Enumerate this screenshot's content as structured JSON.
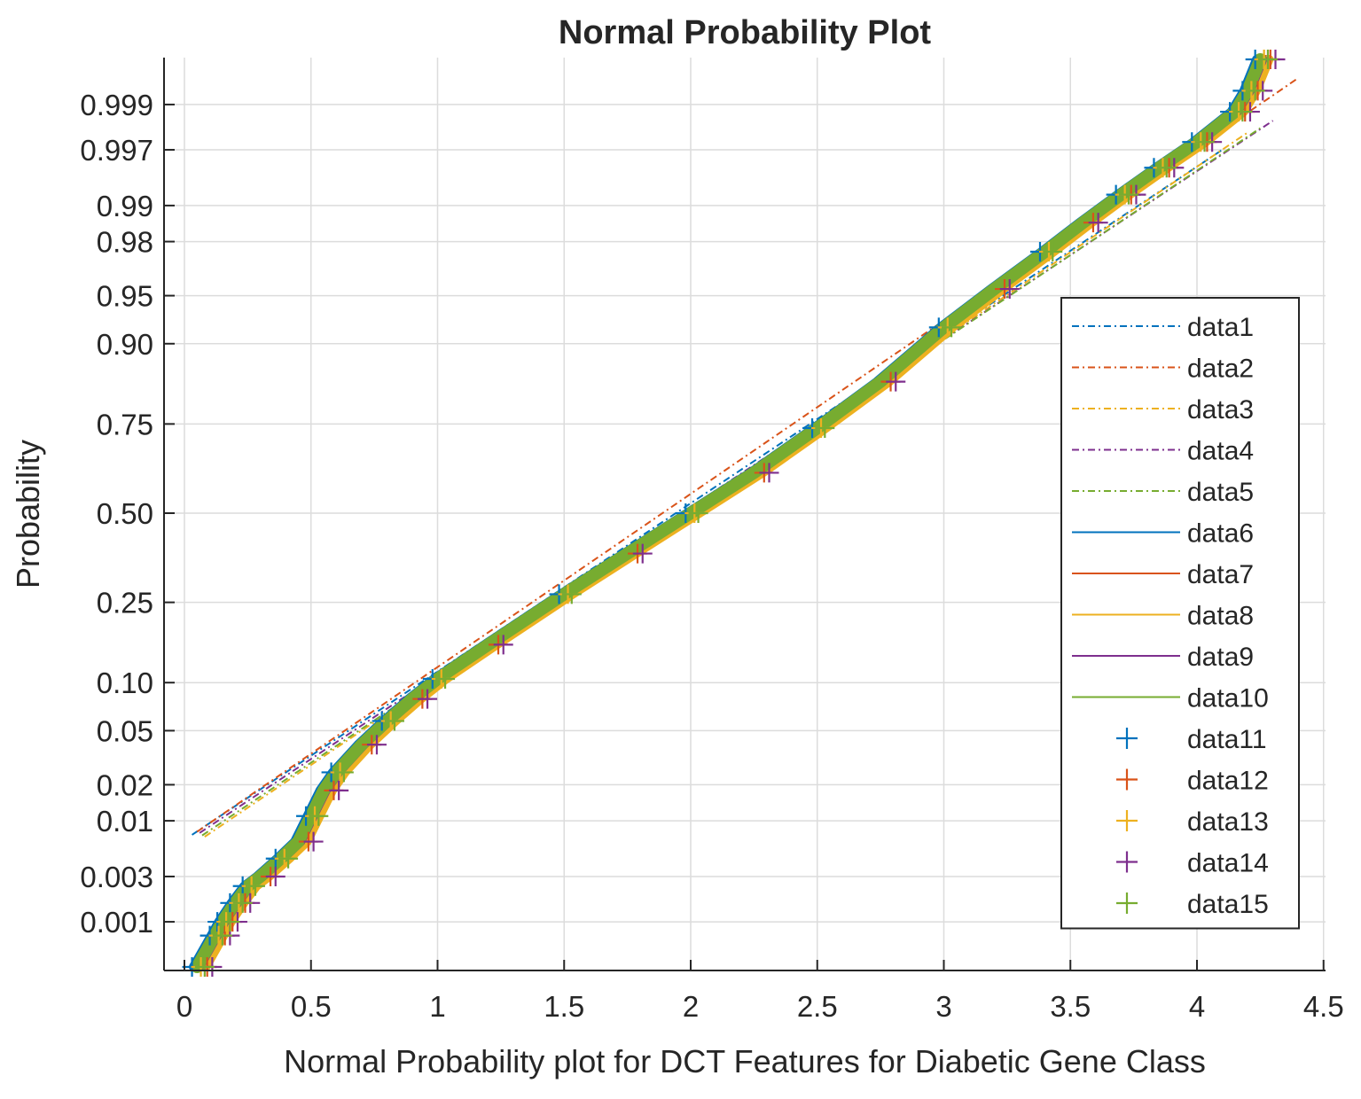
{
  "chart_data": {
    "type": "line",
    "title": "Normal Probability Plot",
    "xlabel": "Normal Probability plot for DCT Features for Diabetic Gene Class",
    "ylabel": "Probability",
    "xlim": [
      -0.07,
      4.5
    ],
    "y_scale": "normal-probability",
    "y_ticks": [
      "0.001",
      "0.003",
      "0.01",
      "0.02",
      "0.05",
      "0.10",
      "0.25",
      "0.50",
      "0.75",
      "0.90",
      "0.95",
      "0.98",
      "0.99",
      "0.997",
      "0.999"
    ],
    "x_ticks": [
      "0",
      "0.5",
      "1",
      "1.5",
      "2",
      "2.5",
      "3",
      "3.5",
      "4",
      "4.5"
    ],
    "grid": true,
    "legend_position": "right, lower-middle",
    "colors": [
      "#0072BD",
      "#D95319",
      "#EDB120",
      "#7E2F8E",
      "#77AC30"
    ],
    "series": [
      {
        "name": "data1",
        "style": "dashdot",
        "color": "#0072BD"
      },
      {
        "name": "data2",
        "style": "dashdot",
        "color": "#D95319"
      },
      {
        "name": "data3",
        "style": "dashdot",
        "color": "#EDB120"
      },
      {
        "name": "data4",
        "style": "dashdot",
        "color": "#7E2F8E"
      },
      {
        "name": "data5",
        "style": "dashdot",
        "color": "#77AC30"
      },
      {
        "name": "data6",
        "style": "solid",
        "color": "#0072BD"
      },
      {
        "name": "data7",
        "style": "solid",
        "color": "#D95319"
      },
      {
        "name": "data8",
        "style": "solid",
        "color": "#EDB120"
      },
      {
        "name": "data9",
        "style": "solid",
        "color": "#7E2F8E"
      },
      {
        "name": "data10",
        "style": "solid",
        "color": "#77AC30"
      },
      {
        "name": "data11",
        "style": "plus",
        "color": "#0072BD"
      },
      {
        "name": "data12",
        "style": "plus",
        "color": "#D95319"
      },
      {
        "name": "data13",
        "style": "plus",
        "color": "#EDB120"
      },
      {
        "name": "data14",
        "style": "plus",
        "color": "#7E2F8E"
      },
      {
        "name": "data15",
        "style": "plus",
        "color": "#77AC30"
      }
    ],
    "reference_lines": [
      {
        "series": "data1",
        "x": [
          0.03,
          4.1
        ],
        "p": [
          0.0075,
          0.997
        ]
      },
      {
        "series": "data2",
        "x": [
          0.05,
          4.4
        ],
        "p": [
          0.008,
          0.9995
        ]
      },
      {
        "series": "data3",
        "x": [
          0.08,
          4.2
        ],
        "p": [
          0.0072,
          0.998
        ]
      },
      {
        "series": "data4",
        "x": [
          0.06,
          4.3
        ],
        "p": [
          0.0078,
          0.9985
        ]
      },
      {
        "series": "data5",
        "x": [
          0.07,
          4.25
        ],
        "p": [
          0.0074,
          0.9982
        ]
      }
    ],
    "points": {
      "x": [
        0.05,
        0.12,
        0.15,
        0.2,
        0.25,
        0.3,
        0.38,
        0.45,
        0.5,
        0.55,
        0.6,
        0.7,
        0.8,
        0.9,
        1.0,
        1.2,
        1.5,
        1.75,
        2.0,
        2.25,
        2.5,
        2.75,
        3.0,
        3.2,
        3.4,
        3.55,
        3.7,
        3.85,
        4.0,
        4.15,
        4.2,
        4.25
      ],
      "p": [
        0.0003,
        0.0007,
        0.001,
        0.0016,
        0.0024,
        0.003,
        0.0045,
        0.0065,
        0.011,
        0.018,
        0.025,
        0.04,
        0.058,
        0.08,
        0.105,
        0.16,
        0.27,
        0.38,
        0.5,
        0.62,
        0.74,
        0.84,
        0.92,
        0.955,
        0.976,
        0.986,
        0.992,
        0.9955,
        0.9975,
        0.9988,
        0.9993,
        0.9997
      ]
    }
  }
}
